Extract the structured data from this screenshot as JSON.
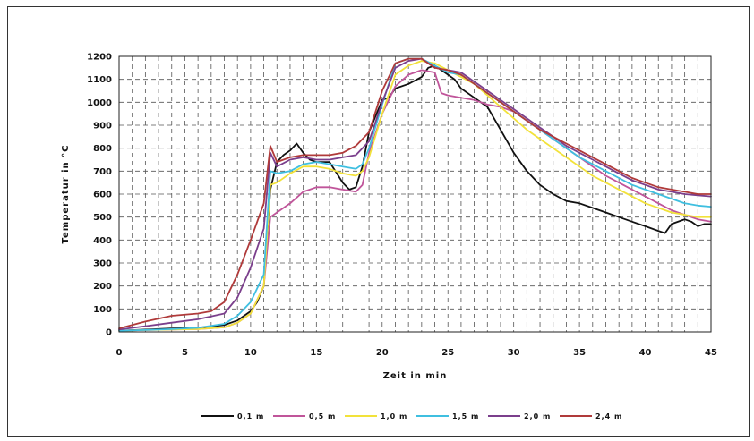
{
  "chart_data": {
    "type": "line",
    "title": "",
    "xlabel": "Zeit in min",
    "ylabel": "Temperatur in °C",
    "xlim": [
      0,
      45
    ],
    "ylim": [
      0,
      1200
    ],
    "x_ticks": [
      0,
      5,
      10,
      15,
      20,
      25,
      30,
      35,
      40,
      45
    ],
    "y_ticks": [
      0,
      100,
      200,
      300,
      400,
      500,
      600,
      700,
      800,
      900,
      1000,
      1100,
      1200
    ],
    "grid": true,
    "legend_position": "bottom",
    "series": [
      {
        "name": "0,1 m",
        "color": "#111111",
        "x": [
          0,
          2,
          4,
          6,
          8,
          9,
          10,
          10.5,
          11,
          11.5,
          12,
          12.5,
          13,
          13.5,
          14,
          14.5,
          15,
          16,
          17,
          17.5,
          18,
          18.5,
          19,
          20,
          20.5,
          21,
          22,
          23,
          23.5,
          24,
          24.5,
          25,
          25.5,
          26,
          27,
          28,
          29,
          30,
          31,
          32,
          33,
          34,
          35,
          36,
          37,
          38,
          39,
          40,
          41,
          41.5,
          42,
          43,
          43.5,
          44,
          44.5,
          45
        ],
        "y": [
          5,
          10,
          15,
          18,
          30,
          50,
          90,
          130,
          200,
          620,
          740,
          770,
          790,
          820,
          780,
          750,
          740,
          740,
          650,
          620,
          630,
          720,
          870,
          1010,
          1020,
          1060,
          1080,
          1110,
          1150,
          1160,
          1140,
          1120,
          1100,
          1060,
          1020,
          980,
          880,
          780,
          700,
          640,
          600,
          570,
          560,
          540,
          520,
          500,
          480,
          460,
          440,
          430,
          470,
          490,
          480,
          460,
          470,
          470
        ]
      },
      {
        "name": "0,5 m",
        "color": "#c0559a",
        "x": [
          0,
          2,
          4,
          6,
          8,
          9,
          10,
          11,
          11.5,
          12,
          13,
          14,
          14.5,
          15,
          16,
          17,
          18,
          18.5,
          19,
          20,
          21,
          22,
          23,
          24,
          24.5,
          25,
          26,
          27,
          28,
          29,
          30,
          31,
          32,
          33,
          34,
          35,
          36,
          37,
          38,
          39,
          40,
          41,
          42,
          43,
          44,
          45
        ],
        "y": [
          5,
          8,
          10,
          12,
          20,
          40,
          80,
          200,
          500,
          520,
          560,
          610,
          620,
          630,
          630,
          620,
          610,
          640,
          780,
          950,
          1070,
          1120,
          1140,
          1130,
          1040,
          1030,
          1020,
          1010,
          990,
          980,
          960,
          920,
          880,
          840,
          800,
          760,
          720,
          680,
          650,
          620,
          590,
          560,
          530,
          510,
          490,
          480
        ]
      },
      {
        "name": "1,0 m",
        "color": "#f2e23a",
        "x": [
          0,
          2,
          4,
          6,
          8,
          9,
          10,
          11,
          11.5,
          12,
          13,
          14,
          15,
          16,
          17,
          18,
          18.5,
          19,
          20,
          21,
          22,
          23,
          24,
          25,
          26,
          27,
          28,
          29,
          30,
          31,
          32,
          33,
          34,
          35,
          36,
          37,
          38,
          39,
          40,
          41,
          42,
          43,
          44,
          45
        ],
        "y": [
          5,
          8,
          10,
          12,
          20,
          40,
          80,
          200,
          640,
          650,
          690,
          720,
          720,
          710,
          690,
          680,
          700,
          760,
          950,
          1120,
          1160,
          1180,
          1170,
          1140,
          1110,
          1080,
          1030,
          980,
          930,
          880,
          840,
          800,
          760,
          720,
          680,
          650,
          620,
          590,
          560,
          540,
          520,
          510,
          500,
          500
        ]
      },
      {
        "name": "1,5 m",
        "color": "#3fbfe0",
        "x": [
          0,
          2,
          4,
          6,
          8,
          9,
          10,
          11,
          11.5,
          12,
          13,
          14,
          15,
          16,
          17,
          18,
          18.5,
          19,
          20,
          21,
          22,
          23,
          24,
          25,
          26,
          27,
          28,
          29,
          30,
          31,
          32,
          33,
          34,
          35,
          36,
          37,
          38,
          39,
          40,
          41,
          42,
          43,
          44,
          45
        ],
        "y": [
          5,
          8,
          12,
          18,
          35,
          70,
          130,
          250,
          700,
          690,
          700,
          730,
          740,
          730,
          720,
          710,
          730,
          800,
          990,
          1170,
          1190,
          1190,
          1160,
          1130,
          1120,
          1080,
          1040,
          1000,
          960,
          920,
          880,
          840,
          800,
          760,
          730,
          700,
          670,
          640,
          620,
          600,
          580,
          560,
          550,
          545
        ]
      },
      {
        "name": "2,0 m",
        "color": "#7b3f8c",
        "x": [
          0,
          2,
          4,
          6,
          8,
          9,
          10,
          11,
          11.5,
          12,
          13,
          14,
          15,
          16,
          17,
          18,
          19,
          20,
          21,
          22,
          23,
          24,
          25,
          26,
          27,
          28,
          29,
          30,
          31,
          32,
          33,
          34,
          35,
          36,
          37,
          38,
          39,
          40,
          41,
          42,
          43,
          44,
          45
        ],
        "y": [
          10,
          25,
          40,
          55,
          80,
          150,
          280,
          450,
          780,
          720,
          750,
          760,
          750,
          750,
          760,
          770,
          830,
          1000,
          1150,
          1180,
          1190,
          1150,
          1140,
          1130,
          1090,
          1050,
          1010,
          970,
          930,
          890,
          850,
          810,
          780,
          750,
          720,
          690,
          660,
          640,
          620,
          610,
          600,
          595,
          590
        ]
      },
      {
        "name": "2,4 m",
        "color": "#b03a3a",
        "x": [
          0,
          2,
          4,
          6,
          7,
          8,
          9,
          10,
          11,
          11.5,
          12,
          13,
          14,
          15,
          16,
          17,
          18,
          19,
          20,
          21,
          22,
          23,
          24,
          25,
          26,
          27,
          28,
          29,
          30,
          31,
          32,
          33,
          34,
          35,
          36,
          37,
          38,
          39,
          40,
          41,
          42,
          43,
          44,
          45
        ],
        "y": [
          15,
          45,
          70,
          80,
          90,
          130,
          250,
          400,
          560,
          810,
          740,
          760,
          770,
          770,
          770,
          780,
          810,
          870,
          1050,
          1170,
          1190,
          1190,
          1150,
          1140,
          1120,
          1080,
          1040,
          1000,
          960,
          920,
          880,
          850,
          820,
          790,
          760,
          730,
          700,
          670,
          650,
          630,
          620,
          610,
          600,
          600
        ]
      }
    ]
  }
}
